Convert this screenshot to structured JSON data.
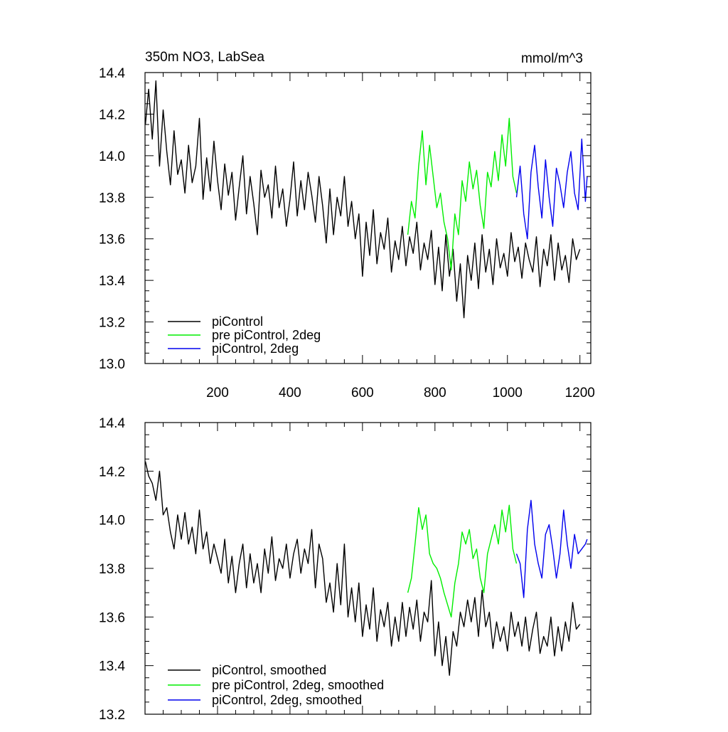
{
  "chart_data": [
    {
      "type": "line",
      "title": "350m NO3, LabSea",
      "unit_label": "mmol/m^3",
      "xlim": [
        0,
        1230
      ],
      "ylim": [
        13.0,
        14.4
      ],
      "xticks": [
        200,
        400,
        600,
        800,
        1000,
        1200
      ],
      "yticks": [
        13.0,
        13.2,
        13.4,
        13.6,
        13.8,
        14.0,
        14.2,
        14.4
      ],
      "ytick_labels": [
        "13.0",
        "13.2",
        "13.4",
        "13.6",
        "13.8",
        "14.0",
        "14.2",
        "14.4"
      ],
      "xtick_labels": [
        "200",
        "400",
        "600",
        "800",
        "1000",
        "1200"
      ],
      "grid": false,
      "legend_position": "bottom-left",
      "series": [
        {
          "name": "piControl",
          "color": "#000000",
          "x": [
            1,
            10,
            20,
            30,
            40,
            50,
            60,
            70,
            80,
            90,
            100,
            110,
            120,
            130,
            140,
            150,
            160,
            170,
            180,
            190,
            200,
            210,
            220,
            230,
            240,
            250,
            260,
            270,
            280,
            290,
            300,
            310,
            320,
            330,
            340,
            350,
            360,
            370,
            380,
            390,
            400,
            410,
            420,
            430,
            440,
            450,
            460,
            470,
            480,
            490,
            500,
            510,
            520,
            530,
            540,
            550,
            560,
            570,
            580,
            590,
            600,
            610,
            620,
            630,
            640,
            650,
            660,
            670,
            680,
            690,
            700,
            710,
            720,
            730,
            740,
            750,
            760,
            770,
            780,
            790,
            800,
            810,
            820,
            830,
            840,
            850,
            860,
            870,
            880,
            890,
            900,
            910,
            920,
            930,
            940,
            950,
            960,
            970,
            980,
            990,
            1000,
            1010,
            1020,
            1030,
            1040,
            1050,
            1060,
            1070,
            1080,
            1090,
            1100,
            1110,
            1120,
            1130,
            1140,
            1150,
            1160,
            1170,
            1180,
            1190,
            1200
          ],
          "y": [
            14.15,
            14.32,
            14.08,
            14.36,
            13.95,
            14.22,
            14.02,
            13.86,
            14.12,
            13.91,
            13.98,
            13.82,
            14.05,
            13.87,
            13.95,
            14.18,
            13.79,
            13.99,
            13.83,
            14.07,
            13.88,
            13.74,
            13.96,
            13.81,
            13.92,
            13.69,
            13.85,
            14.0,
            13.72,
            13.9,
            13.77,
            13.62,
            13.93,
            13.8,
            13.86,
            13.7,
            13.95,
            13.75,
            13.84,
            13.66,
            13.79,
            13.97,
            13.71,
            13.88,
            13.74,
            13.92,
            13.81,
            13.68,
            13.9,
            13.76,
            13.58,
            13.84,
            13.62,
            13.8,
            13.71,
            13.9,
            13.66,
            13.78,
            13.6,
            13.72,
            13.42,
            13.68,
            13.52,
            13.74,
            13.48,
            13.63,
            13.55,
            13.7,
            13.44,
            13.59,
            13.5,
            13.66,
            13.47,
            13.61,
            13.53,
            13.68,
            13.45,
            13.58,
            13.5,
            13.64,
            13.38,
            13.56,
            13.35,
            13.62,
            13.42,
            13.55,
            13.3,
            13.48,
            13.22,
            13.52,
            13.4,
            13.58,
            13.36,
            13.62,
            13.44,
            13.55,
            13.38,
            13.6,
            13.46,
            13.53,
            13.42,
            13.63,
            13.49,
            13.56,
            13.41,
            13.58,
            13.5,
            13.44,
            13.61,
            13.37,
            13.55,
            13.47,
            13.62,
            13.4,
            13.58,
            13.45,
            13.52,
            13.39,
            13.6,
            13.5,
            13.55
          ]
        },
        {
          "name": "pre piControl, 2deg",
          "color": "#00ee00",
          "x": [
            725,
            735,
            745,
            755,
            765,
            775,
            785,
            795,
            805,
            815,
            825,
            835,
            845,
            855,
            865,
            875,
            885,
            895,
            905,
            915,
            925,
            935,
            945,
            955,
            965,
            975,
            985,
            995,
            1005,
            1015,
            1025
          ],
          "y": [
            13.62,
            13.78,
            13.7,
            13.95,
            14.12,
            13.86,
            14.05,
            13.9,
            13.75,
            13.82,
            13.68,
            13.6,
            13.45,
            13.72,
            13.62,
            13.88,
            13.78,
            13.97,
            13.84,
            13.93,
            13.76,
            13.65,
            13.92,
            13.85,
            14.02,
            13.88,
            14.1,
            13.95,
            14.18,
            13.9,
            13.82
          ]
        },
        {
          "name": "piControl, 2deg",
          "color": "#0000ee",
          "x": [
            1025,
            1035,
            1045,
            1055,
            1065,
            1075,
            1085,
            1095,
            1105,
            1115,
            1125,
            1135,
            1145,
            1155,
            1165,
            1175,
            1185,
            1195,
            1205,
            1215,
            1220
          ],
          "y": [
            13.8,
            13.95,
            13.72,
            13.6,
            13.92,
            14.05,
            13.85,
            13.7,
            13.98,
            13.8,
            13.66,
            13.94,
            13.86,
            13.75,
            13.92,
            14.02,
            13.82,
            13.74,
            14.08,
            13.78,
            13.9
          ]
        }
      ]
    },
    {
      "type": "line",
      "xlim": [
        0,
        1230
      ],
      "ylim": [
        13.2,
        14.4
      ],
      "yticks": [
        13.2,
        13.4,
        13.6,
        13.8,
        14.0,
        14.2,
        14.4
      ],
      "ytick_labels": [
        "13.2",
        "13.4",
        "13.6",
        "13.8",
        "14.0",
        "14.2",
        "14.4"
      ],
      "xticks": [
        200,
        400,
        600,
        800,
        1000,
        1200
      ],
      "grid": false,
      "legend_position": "bottom-left",
      "series": [
        {
          "name": "piControl, smoothed",
          "color": "#000000",
          "x": [
            1,
            10,
            20,
            30,
            40,
            50,
            60,
            70,
            80,
            90,
            100,
            110,
            120,
            130,
            140,
            150,
            160,
            170,
            180,
            190,
            200,
            210,
            220,
            230,
            240,
            250,
            260,
            270,
            280,
            290,
            300,
            310,
            320,
            330,
            340,
            350,
            360,
            370,
            380,
            390,
            400,
            410,
            420,
            430,
            440,
            450,
            460,
            470,
            480,
            490,
            500,
            510,
            520,
            530,
            540,
            550,
            560,
            570,
            580,
            590,
            600,
            610,
            620,
            630,
            640,
            650,
            660,
            670,
            680,
            690,
            700,
            710,
            720,
            730,
            740,
            750,
            760,
            770,
            780,
            790,
            800,
            810,
            820,
            830,
            840,
            850,
            860,
            870,
            880,
            890,
            900,
            910,
            920,
            930,
            940,
            950,
            960,
            970,
            980,
            990,
            1000,
            1010,
            1020,
            1030,
            1040,
            1050,
            1060,
            1070,
            1080,
            1090,
            1100,
            1110,
            1120,
            1130,
            1140,
            1150,
            1160,
            1170,
            1180,
            1190,
            1200
          ],
          "y": [
            14.24,
            14.18,
            14.15,
            14.08,
            14.2,
            14.02,
            14.05,
            13.95,
            13.88,
            14.02,
            13.92,
            14.03,
            13.9,
            13.97,
            13.86,
            14.04,
            13.88,
            13.95,
            13.82,
            13.9,
            13.84,
            13.78,
            13.92,
            13.74,
            13.85,
            13.7,
            13.82,
            13.9,
            13.72,
            13.86,
            13.74,
            13.82,
            13.7,
            13.88,
            13.78,
            13.93,
            13.75,
            13.84,
            13.8,
            13.9,
            13.76,
            13.86,
            13.92,
            13.78,
            13.88,
            13.82,
            13.96,
            13.72,
            13.9,
            13.84,
            13.66,
            13.74,
            13.62,
            13.82,
            13.65,
            13.9,
            13.6,
            13.72,
            13.58,
            13.74,
            13.52,
            13.65,
            13.55,
            13.72,
            13.5,
            13.63,
            13.56,
            13.66,
            13.48,
            13.6,
            13.5,
            13.66,
            13.52,
            13.64,
            13.55,
            13.67,
            13.5,
            13.62,
            13.58,
            13.75,
            13.44,
            13.58,
            13.4,
            13.52,
            13.36,
            13.54,
            13.48,
            13.62,
            13.56,
            13.67,
            13.58,
            13.68,
            13.52,
            13.71,
            13.56,
            13.62,
            13.47,
            13.58,
            13.5,
            13.56,
            13.46,
            13.62,
            13.52,
            13.58,
            13.48,
            13.6,
            13.46,
            13.55,
            13.62,
            13.45,
            13.52,
            13.48,
            13.6,
            13.44,
            13.56,
            13.46,
            13.58,
            13.5,
            13.66,
            13.55,
            13.57
          ]
        },
        {
          "name": "pre piControl, 2deg, smoothed",
          "color": "#00ee00",
          "x": [
            725,
            735,
            745,
            755,
            765,
            775,
            785,
            795,
            805,
            815,
            825,
            835,
            845,
            855,
            865,
            875,
            885,
            895,
            905,
            915,
            925,
            935,
            945,
            955,
            965,
            975,
            985,
            995,
            1005,
            1015,
            1025
          ],
          "y": [
            13.7,
            13.76,
            13.9,
            14.05,
            13.96,
            14.02,
            13.86,
            13.82,
            13.8,
            13.76,
            13.7,
            13.65,
            13.6,
            13.74,
            13.82,
            13.95,
            13.9,
            13.96,
            13.84,
            13.88,
            13.76,
            13.7,
            13.86,
            13.92,
            13.98,
            13.9,
            14.04,
            13.95,
            14.06,
            13.88,
            13.82
          ]
        },
        {
          "name": "piControl, 2deg, smoothed",
          "color": "#0000ee",
          "x": [
            1025,
            1035,
            1045,
            1055,
            1065,
            1075,
            1085,
            1095,
            1105,
            1115,
            1125,
            1135,
            1145,
            1155,
            1165,
            1175,
            1185,
            1195,
            1205,
            1215,
            1220
          ],
          "y": [
            13.86,
            13.82,
            13.68,
            13.96,
            14.08,
            13.9,
            13.82,
            13.76,
            13.94,
            13.98,
            13.88,
            13.76,
            13.86,
            14.04,
            13.9,
            13.8,
            13.94,
            13.86,
            13.88,
            13.9,
            13.92
          ]
        }
      ]
    }
  ]
}
